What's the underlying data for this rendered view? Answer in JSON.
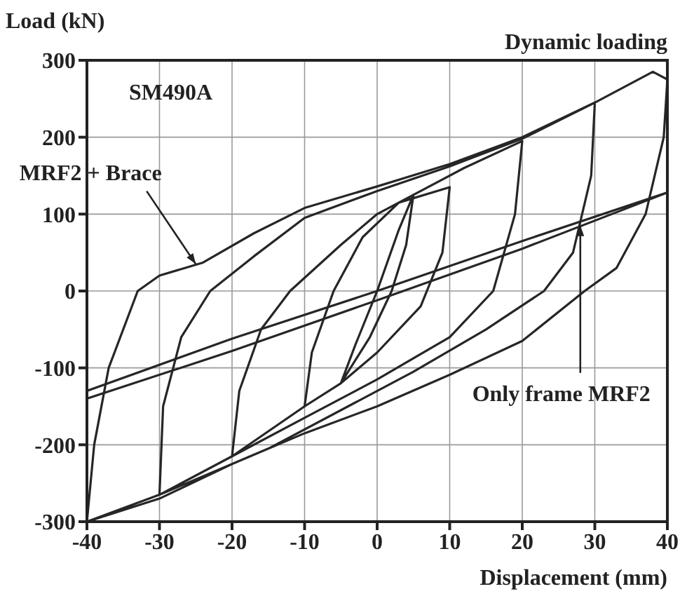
{
  "chart_data": {
    "type": "line",
    "title": "Dynamic loading",
    "xlabel": "Displacement (mm)",
    "ylabel": "Load (kN)",
    "xlim": [
      -40,
      40
    ],
    "xticks": [
      -40,
      -30,
      -20,
      -10,
      0,
      10,
      20,
      30,
      40
    ],
    "ylim": [
      -300,
      300
    ],
    "yticks": [
      -300,
      -200,
      -100,
      0,
      100,
      200,
      300
    ],
    "grid": true,
    "legend": false,
    "marker": "none",
    "line_style": "solid",
    "annotations": [
      "SM490A",
      {
        "text": "MRF2 + Brace",
        "x": -25,
        "y": 35
      },
      {
        "text": "Only frame MRF2",
        "x": 28,
        "y": 85
      }
    ],
    "series": [
      {
        "color": "#262626",
        "x": [
          -5,
          -3,
          0,
          3,
          5,
          4,
          2,
          -1,
          -5,
          -10,
          -9,
          -6,
          -2,
          3,
          10,
          9,
          6,
          0,
          -5,
          -10,
          -20,
          -19,
          -16,
          -12,
          -5,
          0,
          5,
          12,
          20,
          19,
          16,
          10,
          0,
          -10,
          -20,
          -30,
          -29.5,
          -27,
          -23,
          -17,
          -10,
          0,
          10,
          20,
          30,
          29.5,
          27,
          23,
          15,
          5,
          -5,
          -15,
          -25,
          -30,
          -40,
          -39,
          -37,
          -33,
          -30,
          -24,
          -17,
          -10,
          0,
          10,
          20,
          30,
          38,
          40,
          39.5,
          37,
          33,
          28.6,
          20,
          10,
          0,
          -10,
          -20,
          -30,
          -40
        ],
        "values": [
          -120,
          -70,
          0,
          80,
          125,
          60,
          0,
          -60,
          -120,
          -150,
          -80,
          0,
          70,
          115,
          135,
          50,
          -20,
          -80,
          -120,
          -150,
          -215,
          -130,
          -50,
          0,
          60,
          100,
          125,
          160,
          195,
          100,
          0,
          -60,
          -115,
          -165,
          -215,
          -265,
          -150,
          -60,
          0,
          45,
          95,
          130,
          162,
          198,
          245,
          150,
          50,
          0,
          -50,
          -105,
          -155,
          -205,
          -245,
          -265,
          -300,
          -200,
          -100,
          0,
          20,
          37,
          75,
          108,
          136,
          165,
          200,
          245,
          285,
          275,
          200,
          100,
          30,
          0,
          -65,
          -109,
          -150,
          -185,
          -225,
          -270,
          -300
        ]
      },
      {
        "color": "#262626",
        "x": [
          -40,
          -20,
          0,
          20,
          40,
          20,
          0,
          -20,
          -40
        ],
        "values": [
          -130,
          -62,
          0,
          65,
          128,
          55,
          -12,
          -78,
          -140
        ]
      }
    ]
  }
}
